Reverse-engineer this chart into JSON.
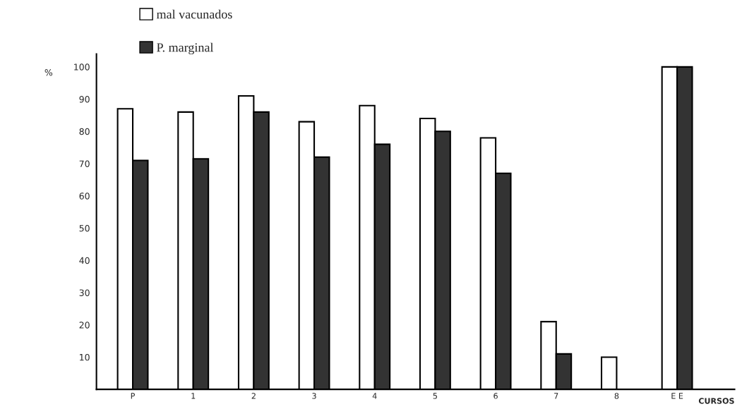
{
  "chart_data": {
    "type": "bar",
    "xlabel": "CURSOS",
    "ylabel": "%",
    "categories": [
      "P",
      "1",
      "2",
      "3",
      "4",
      "5",
      "6",
      "7",
      "8",
      "E E"
    ],
    "series": [
      {
        "name": "mal vacunados",
        "color": "#ffffff",
        "values": [
          87,
          86,
          91,
          83,
          88,
          84,
          78,
          21,
          10,
          100
        ]
      },
      {
        "name": "P. marginal",
        "color": "#333333",
        "values": [
          71,
          71.5,
          86,
          72,
          76,
          80,
          67,
          11,
          0,
          100
        ]
      }
    ],
    "ylim": [
      0,
      104
    ],
    "yticks": [
      10,
      20,
      30,
      40,
      50,
      60,
      70,
      80,
      90,
      100
    ],
    "grid": false,
    "legend": "top left"
  }
}
